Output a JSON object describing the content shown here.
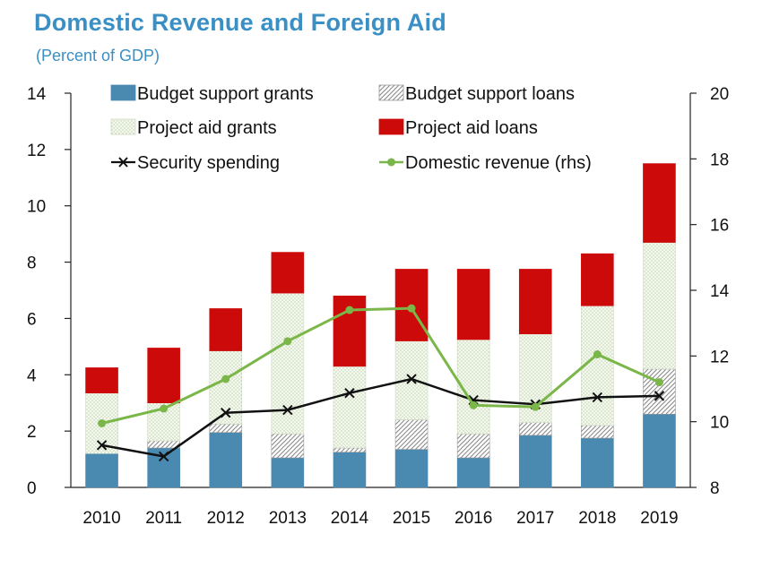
{
  "title": "Domestic Revenue and Foreign Aid",
  "subtitle": "(Percent of GDP)",
  "colors": {
    "title": "#3a8fc4",
    "budget_support_grants": "#4a89b0",
    "budget_support_loans": "#bfbfbf",
    "project_aid_grants": "#e6efdc",
    "project_aid_loans": "#cc0a0a",
    "security_spending": "#111111",
    "domestic_revenue": "#7ab648"
  },
  "chart_data": {
    "type": "bar",
    "stacked": true,
    "categories": [
      "2010",
      "2011",
      "2012",
      "2013",
      "2014",
      "2015",
      "2016",
      "2017",
      "2018",
      "2019"
    ],
    "series": [
      {
        "name": "Budget support grants",
        "values": [
          1.2,
          1.4,
          1.95,
          1.05,
          1.25,
          1.35,
          1.05,
          1.85,
          1.75,
          2.6
        ]
      },
      {
        "name": "Budget support loans",
        "values": [
          0.0,
          0.25,
          0.3,
          0.85,
          0.15,
          1.05,
          0.85,
          0.45,
          0.45,
          1.6
        ]
      },
      {
        "name": "Project aid grants",
        "values": [
          2.15,
          1.35,
          2.6,
          5.0,
          2.9,
          2.8,
          3.35,
          3.15,
          4.25,
          4.5
        ]
      },
      {
        "name": "Project aid loans",
        "values": [
          0.9,
          1.95,
          1.5,
          1.45,
          2.5,
          2.55,
          2.5,
          2.3,
          1.85,
          2.8
        ]
      }
    ],
    "lines": [
      {
        "name": "Security spending",
        "axis": "left",
        "values": [
          1.5,
          1.1,
          2.65,
          2.75,
          3.35,
          3.85,
          3.1,
          2.95,
          3.2,
          3.25
        ]
      },
      {
        "name": "Domestic revenue (rhs)",
        "axis": "right",
        "values": [
          9.95,
          10.4,
          11.3,
          12.45,
          13.4,
          13.45,
          10.5,
          10.45,
          12.05,
          11.2
        ]
      }
    ],
    "ylim": [
      0,
      14
    ],
    "yticks": [
      "0",
      "2",
      "4",
      "6",
      "8",
      "10",
      "12",
      "14"
    ],
    "y2lim": [
      8,
      20
    ],
    "y2ticks": [
      "8",
      "10",
      "12",
      "14",
      "16",
      "18",
      "20"
    ],
    "legend": {
      "position": "top",
      "items": [
        {
          "label": "Budget support grants",
          "kind": "bar"
        },
        {
          "label": "Budget support loans",
          "kind": "hatch"
        },
        {
          "label": "Project aid grants",
          "kind": "dots"
        },
        {
          "label": "Project aid loans",
          "kind": "bar"
        },
        {
          "label": "Security spending",
          "kind": "x-line"
        },
        {
          "label": "Domestic revenue (rhs)",
          "kind": "dot-line"
        }
      ]
    },
    "grid": false
  }
}
